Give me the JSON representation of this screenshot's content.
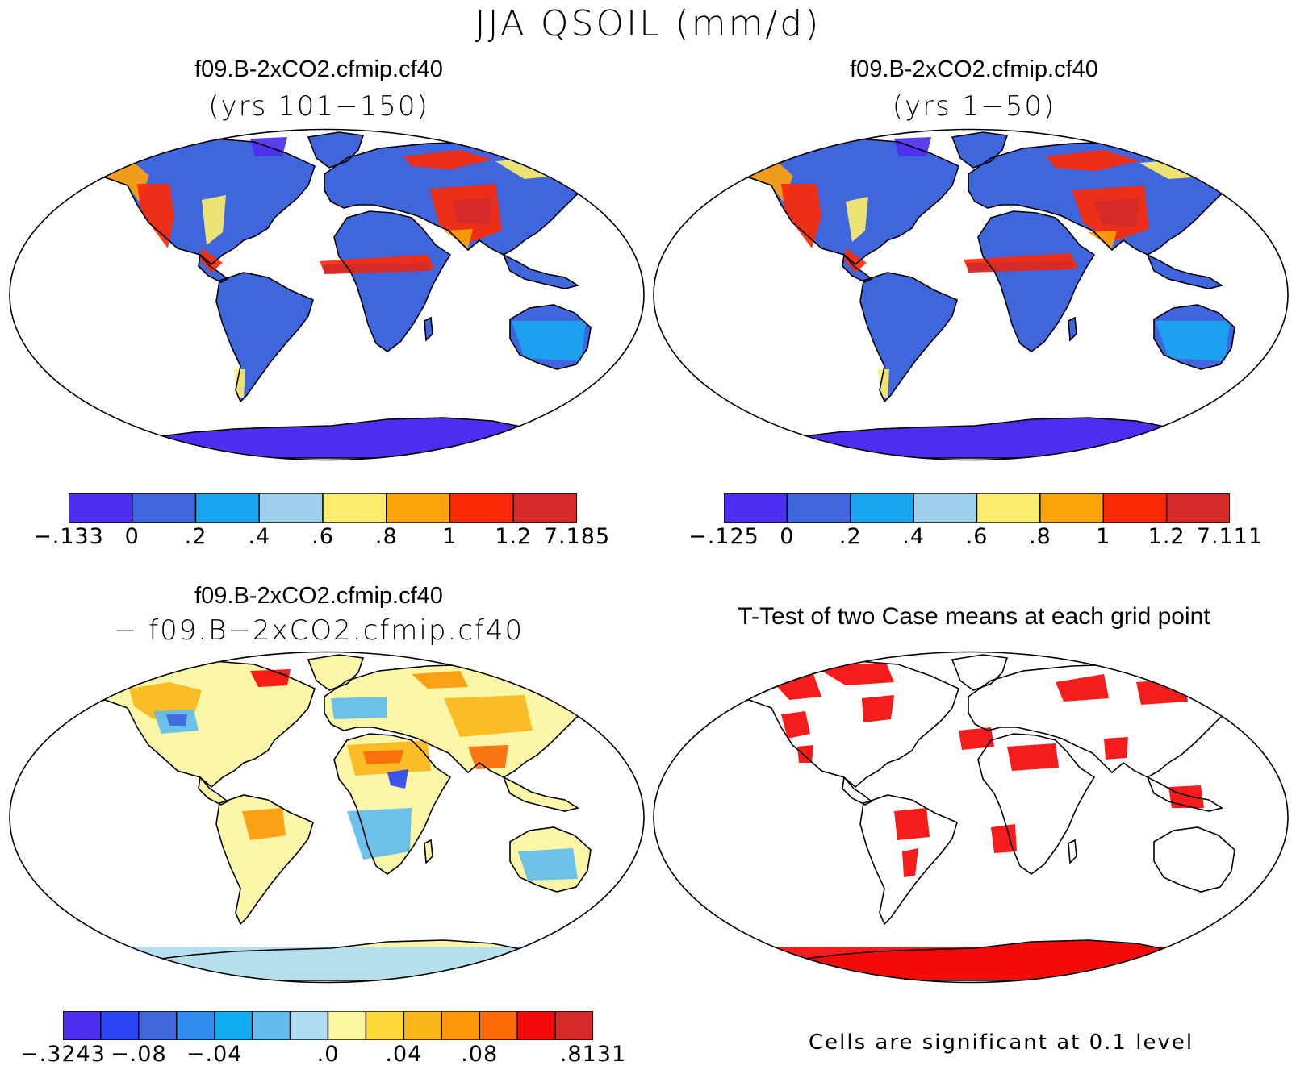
{
  "figure": {
    "title": "JJA QSOIL (mm/d)",
    "note": "Cells are significant at 0.1 level"
  },
  "colors": {
    "ocean": "#ffffff",
    "coast": "#000000"
  },
  "chart_data": [
    {
      "type": "heatmap",
      "title": "f09.B-2xCO2.cfmip.cf40",
      "subtitle": "(yrs 101−150)",
      "land_color": "#3f66dd",
      "colorbar": {
        "colors": [
          "#4e2df0",
          "#3f66dd",
          "#1aa5f0",
          "#9ed0ee",
          "#fbee6e",
          "#fca20a",
          "#fb2a06",
          "#d42a2a"
        ],
        "labels": [
          "−.133",
          "0",
          ".2",
          ".4",
          ".6",
          ".8",
          "1",
          "1.2",
          "7.185"
        ],
        "min": -0.133,
        "max": 7.185,
        "levels": [
          0,
          0.2,
          0.4,
          0.6,
          0.8,
          1,
          1.2
        ]
      }
    },
    {
      "type": "heatmap",
      "title": "f09.B-2xCO2.cfmip.cf40",
      "subtitle": "(yrs 1−50)",
      "land_color": "#3f66dd",
      "colorbar": {
        "colors": [
          "#4e2df0",
          "#3f66dd",
          "#1aa5f0",
          "#9ed0ee",
          "#fbee6e",
          "#fca20a",
          "#fb2a06",
          "#d42a2a"
        ],
        "labels": [
          "−.125",
          "0",
          ".2",
          ".4",
          ".6",
          ".8",
          "1",
          "1.2",
          "7.111"
        ],
        "min": -0.125,
        "max": 7.111,
        "levels": [
          0,
          0.2,
          0.4,
          0.6,
          0.8,
          1,
          1.2
        ]
      }
    },
    {
      "type": "heatmap",
      "title": "f09.B-2xCO2.cfmip.cf40",
      "subtitle": "− f09.B−2xCO2.cfmip.cf40",
      "land_color": "#fbf6a8",
      "colorbar": {
        "colors": [
          "#4e2df0",
          "#2a46f2",
          "#3f66dd",
          "#2f8cef",
          "#12aef2",
          "#5fbcec",
          "#b0dcf2",
          "#fcf6a0",
          "#fbd838",
          "#fbb71a",
          "#fc980a",
          "#fa6a07",
          "#f40a08",
          "#d42a2a"
        ],
        "labels": [
          "−.3243",
          "−.08",
          "−.04",
          ".0",
          ".04",
          ".08",
          ".8131"
        ],
        "label_slots": [
          0,
          2,
          4,
          7,
          9,
          11,
          14
        ],
        "min": -0.3243,
        "max": 0.8131
      }
    },
    {
      "type": "heatmap",
      "title": "T-Test of two Case means at each grid point",
      "land_color": "#ffffff",
      "significant_color": "#f40a08",
      "significance_level": 0.1
    }
  ]
}
